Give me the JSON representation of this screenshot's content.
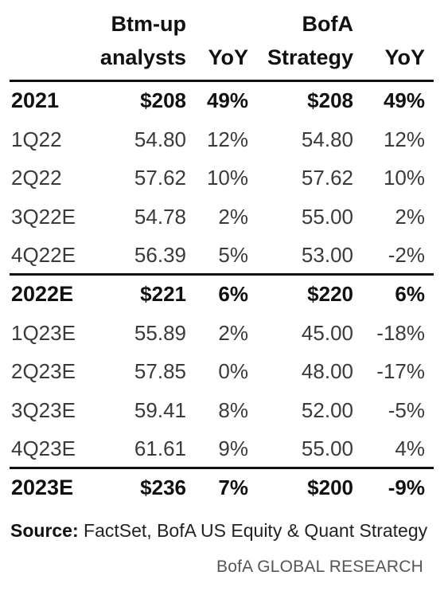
{
  "chart_data": {
    "type": "table",
    "columns": [
      {
        "line1": "",
        "line2": ""
      },
      {
        "line1": "Btm-up",
        "line2": "analysts"
      },
      {
        "line1": "",
        "line2": "YoY"
      },
      {
        "line1": "BofA",
        "line2": "Strategy"
      },
      {
        "line1": "",
        "line2": "YoY"
      }
    ],
    "rows": [
      {
        "label": "2021",
        "btm_up": "$208",
        "btm_yoy": "49%",
        "bofa": "$208",
        "bofa_yoy": "49%",
        "bold": true
      },
      {
        "label": "1Q22",
        "btm_up": "54.80",
        "btm_yoy": "12%",
        "bofa": "54.80",
        "bofa_yoy": "12%",
        "bold": false
      },
      {
        "label": "2Q22",
        "btm_up": "57.62",
        "btm_yoy": "10%",
        "bofa": "57.62",
        "bofa_yoy": "10%",
        "bold": false
      },
      {
        "label": "3Q22E",
        "btm_up": "54.78",
        "btm_yoy": "2%",
        "bofa": "55.00",
        "bofa_yoy": "2%",
        "bold": false
      },
      {
        "label": "4Q22E",
        "btm_up": "56.39",
        "btm_yoy": "5%",
        "bofa": "53.00",
        "bofa_yoy": "-2%",
        "bold": false
      },
      {
        "label": "2022E",
        "btm_up": "$221",
        "btm_yoy": "6%",
        "bofa": "$220",
        "bofa_yoy": "6%",
        "bold": true
      },
      {
        "label": "1Q23E",
        "btm_up": "55.89",
        "btm_yoy": "2%",
        "bofa": "45.00",
        "bofa_yoy": "-18%",
        "bold": false
      },
      {
        "label": "2Q23E",
        "btm_up": "57.85",
        "btm_yoy": "0%",
        "bofa": "48.00",
        "bofa_yoy": "-17%",
        "bold": false
      },
      {
        "label": "3Q23E",
        "btm_up": "59.41",
        "btm_yoy": "8%",
        "bofa": "52.00",
        "bofa_yoy": "-5%",
        "bold": false
      },
      {
        "label": "4Q23E",
        "btm_up": "61.61",
        "btm_yoy": "9%",
        "bofa": "55.00",
        "bofa_yoy": "4%",
        "bold": false
      },
      {
        "label": "2023E",
        "btm_up": "$236",
        "btm_yoy": "7%",
        "bofa": "$200",
        "bofa_yoy": "-9%",
        "bold": true
      }
    ]
  },
  "source": {
    "prefix": "Source:",
    "text": " FactSet, BofA US Equity & Quant Strategy"
  },
  "brand": "BofA GLOBAL RESEARCH"
}
